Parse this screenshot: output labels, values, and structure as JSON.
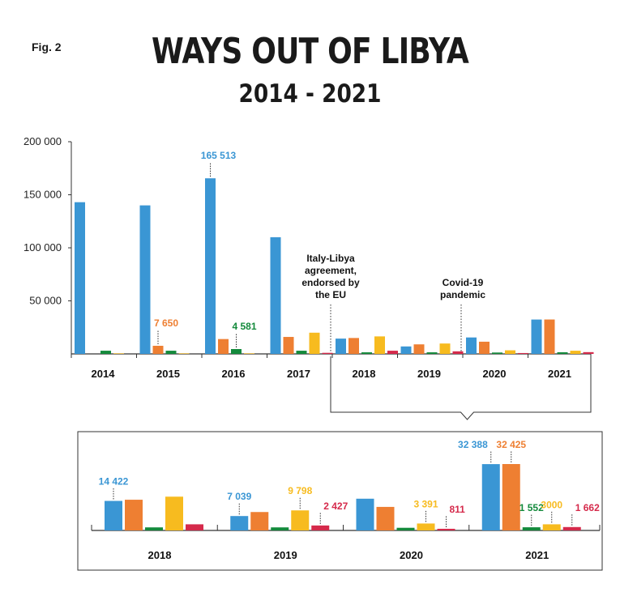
{
  "figure_label": "Fig. 2",
  "title": "WAYS OUT OF LIBYA",
  "subtitle": "2014 - 2021",
  "colors": {
    "blue": "#3a96d4",
    "orange": "#ee7f32",
    "green": "#148a3c",
    "yellow": "#f7bb1f",
    "red": "#d52a4b",
    "axis": "#333333"
  },
  "chart_data": [
    {
      "type": "bar",
      "categories": [
        "2014",
        "2015",
        "2016",
        "2017",
        "2018",
        "2019",
        "2020",
        "2021"
      ],
      "series": [
        {
          "color_key": "blue",
          "values": [
            143000,
            140000,
            165513,
            110000,
            14422,
            7039,
            15500,
            32388
          ]
        },
        {
          "color_key": "orange",
          "values": [
            0,
            7650,
            14000,
            16000,
            15000,
            9000,
            11500,
            32425
          ]
        },
        {
          "color_key": "green",
          "values": [
            3000,
            3000,
            4581,
            3000,
            1500,
            1500,
            1300,
            1552
          ]
        },
        {
          "color_key": "yellow",
          "values": [
            500,
            500,
            500,
            20000,
            16500,
            9798,
            3391,
            3000
          ]
        },
        {
          "color_key": "red",
          "values": [
            0,
            0,
            0,
            1000,
            3000,
            2427,
            811,
            1662
          ]
        }
      ],
      "ylim": [
        0,
        200000
      ],
      "yticks": [
        {
          "value": 200000,
          "label": "200 000"
        },
        {
          "value": 150000,
          "label": "150 000"
        },
        {
          "value": 100000,
          "label": "100 000"
        },
        {
          "value": 50000,
          "label": "50 000"
        }
      ],
      "value_labels": [
        {
          "category": "2016",
          "series": 0,
          "text": "165 513",
          "color_key": "blue"
        },
        {
          "category": "2015",
          "series": 1,
          "text": "7 650",
          "color_key": "orange"
        },
        {
          "category": "2016",
          "series": 2,
          "text": "4 581",
          "color_key": "green"
        }
      ],
      "annotations": [
        {
          "between": [
            "2017",
            "2018"
          ],
          "lines": [
            "Italy-Libya",
            "agreement,",
            "endorsed by",
            "the EU"
          ]
        },
        {
          "between": [
            "2019",
            "2020"
          ],
          "lines": [
            "Covid-19",
            "pandemic"
          ]
        }
      ],
      "zoom_range": [
        "2018",
        "2021"
      ]
    },
    {
      "type": "bar",
      "title": "",
      "categories": [
        "2018",
        "2019",
        "2020",
        "2021"
      ],
      "series": [
        {
          "color_key": "blue",
          "values": [
            14422,
            7039,
            15500,
            32388
          ]
        },
        {
          "color_key": "orange",
          "values": [
            15000,
            9000,
            11500,
            32425
          ]
        },
        {
          "color_key": "green",
          "values": [
            1500,
            1500,
            1300,
            1552
          ]
        },
        {
          "color_key": "yellow",
          "values": [
            16500,
            9798,
            3391,
            3000
          ]
        },
        {
          "color_key": "red",
          "values": [
            3000,
            2427,
            811,
            1662
          ]
        }
      ],
      "ylim": [
        0,
        36000
      ],
      "value_labels": [
        {
          "category": "2018",
          "series": 0,
          "text": "14 422",
          "color_key": "blue",
          "side": "center"
        },
        {
          "category": "2019",
          "series": 0,
          "text": "7 039",
          "color_key": "blue",
          "side": "center"
        },
        {
          "category": "2019",
          "series": 3,
          "text": "9 798",
          "color_key": "yellow",
          "side": "center"
        },
        {
          "category": "2019",
          "series": 4,
          "text": "2 427",
          "color_key": "red",
          "side": "right"
        },
        {
          "category": "2020",
          "series": 3,
          "text": "3 391",
          "color_key": "yellow",
          "side": "center"
        },
        {
          "category": "2020",
          "series": 4,
          "text": "811",
          "color_key": "red",
          "side": "right"
        },
        {
          "category": "2021",
          "series": 0,
          "text": "32 388",
          "color_key": "blue",
          "side": "left"
        },
        {
          "category": "2021",
          "series": 1,
          "text": "32 425",
          "color_key": "orange",
          "side": "center"
        },
        {
          "category": "2021",
          "series": 2,
          "text": "1 552",
          "color_key": "green",
          "side": "center"
        },
        {
          "category": "2021",
          "series": 3,
          "text": "3000",
          "color_key": "yellow",
          "side": "center"
        },
        {
          "category": "2021",
          "series": 4,
          "text": "1 662",
          "color_key": "red",
          "side": "right"
        }
      ]
    }
  ]
}
